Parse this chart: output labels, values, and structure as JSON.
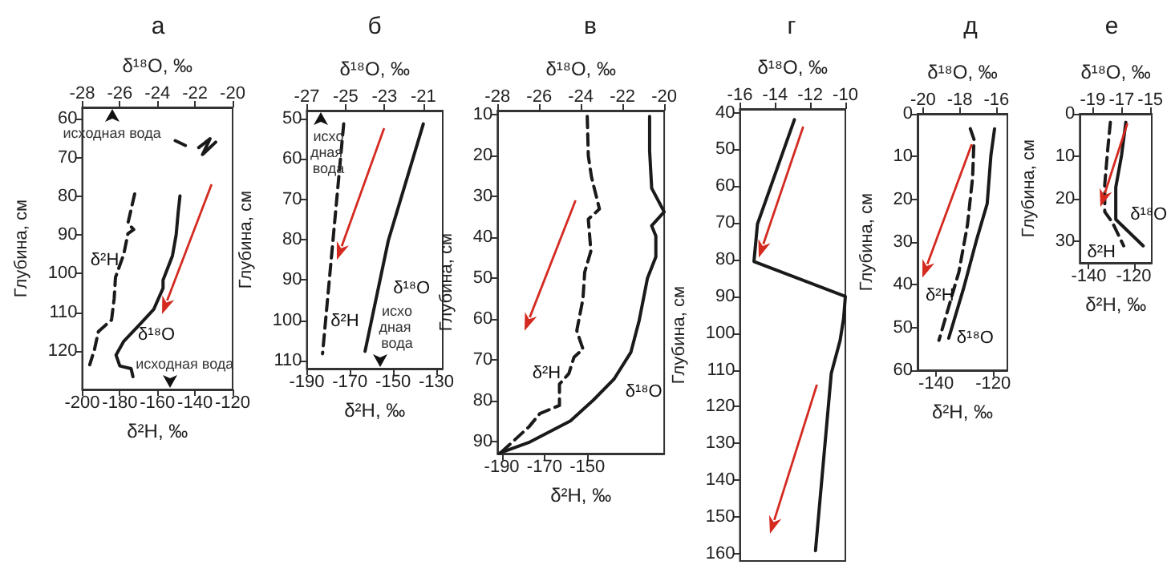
{
  "chart_data": [
    {
      "type": "line",
      "title": "а",
      "xlabel": "δ²H, ‰",
      "x2label": "δ¹⁸O, ‰",
      "ylabel": "Глубина, см",
      "xlim": [
        -200,
        -120
      ],
      "xticks": [
        -200,
        -180,
        -160,
        -140,
        -120
      ],
      "x2lim": [
        -28,
        -20
      ],
      "x2ticks": [
        -28,
        -26,
        -24,
        -22,
        -20
      ],
      "ylim": [
        130,
        57
      ],
      "yticks": [
        60,
        70,
        80,
        90,
        100,
        110,
        120
      ],
      "marker": "none",
      "series": [
        {
          "name": "δ²H",
          "color": "#1a1a1a",
          "line_style": "dashed",
          "x": [
            -150.5,
            -142.7,
            null,
            -172.1,
            -175.7,
            -172.6,
            -175.7,
            -177.9,
            -182.3,
            -183,
            -184.4,
            -191.4,
            -193.5,
            -196
          ],
          "values": [
            65.6,
            67.4,
            null,
            79.4,
            87,
            88.6,
            89.7,
            95,
            101,
            106.5,
            112,
            115,
            119.7,
            123.6
          ]
        },
        {
          "name": "δ¹⁸O",
          "color": "#1a1a1a",
          "line_style": "solid",
          "axis": "x2",
          "x": [
            -21.8,
            -21.2,
            -21.6,
            -20.9,
            null,
            -22.8,
            -22.9,
            -23.0,
            -23.2,
            -23.7,
            -23.7,
            -24.2,
            -25.0,
            -25.8,
            -26.2,
            -26.0,
            -25.4,
            -25.3
          ],
          "values": [
            67.4,
            65.1,
            69.2,
            66,
            null,
            79.9,
            84.4,
            89.9,
            95.4,
            101.7,
            103.8,
            109.3,
            113.5,
            117.6,
            121.1,
            123.9,
            124.6,
            126.7
          ]
        }
      ],
      "annotations": [
        "исходная вода",
        "исходная вода"
      ]
    },
    {
      "type": "line",
      "title": "б",
      "xlabel": "δ²H, ‰",
      "x2label": "δ¹⁸O, ‰",
      "ylabel": "Глубина, см",
      "xlim": [
        -190,
        -127
      ],
      "xticks": [
        -190,
        -170,
        -150,
        -130
      ],
      "x2lim": [
        -27,
        -20
      ],
      "x2ticks": [
        -27,
        -25,
        -23,
        -21
      ],
      "ylim": [
        112,
        48
      ],
      "yticks": [
        50,
        60,
        70,
        80,
        90,
        100,
        110
      ],
      "marker": "none",
      "series": [
        {
          "name": "δ²H",
          "color": "#1a1a1a",
          "line_style": "dashed",
          "x": [
            -172.9,
            -182.7
          ],
          "values": [
            51.3,
            108.3
          ]
        },
        {
          "name": "δ¹⁸O",
          "color": "#1a1a1a",
          "line_style": "solid",
          "axis": "x2",
          "x": [
            -21.0,
            -22.8,
            -24.0
          ],
          "values": [
            51.3,
            80.2,
            107.7
          ]
        }
      ],
      "annotations": [
        "исходная вода",
        "исходная вода"
      ]
    },
    {
      "type": "line",
      "title": "в",
      "xlabel": "δ²H, ‰",
      "x2label": "δ¹⁸O, ‰",
      "ylabel": "Глубина, см",
      "xlim": [
        -192,
        -114
      ],
      "xticks": [
        -190,
        -170,
        -150
      ],
      "x2lim": [
        -28,
        -20
      ],
      "x2ticks": [
        -28,
        -26,
        -24,
        -22,
        -20
      ],
      "ylim": [
        93,
        9
      ],
      "yticks": [
        10,
        20,
        30,
        40,
        50,
        60,
        70,
        80,
        90
      ],
      "marker": "none",
      "series": [
        {
          "name": "δ²H",
          "color": "#1a1a1a",
          "line_style": "dashed",
          "x": [
            -150,
            -149.5,
            -148,
            -144.3,
            -149.5,
            -148.3,
            -151.2,
            -152,
            -154.9,
            -152,
            -156.2,
            -158.6,
            -163,
            -163,
            -172.2,
            -177.2,
            -190.7
          ],
          "values": [
            10.4,
            20.1,
            25.3,
            33.1,
            35.6,
            43.4,
            48.6,
            55.1,
            62.9,
            67.4,
            69.4,
            73.4,
            76,
            81.2,
            83.2,
            86.4,
            92.9
          ]
        },
        {
          "name": "δ¹⁸O",
          "color": "#1a1a1a",
          "line_style": "solid",
          "axis": "x2",
          "x": [
            -20.7,
            -20.7,
            -20.6,
            -20.0,
            -20.6,
            -20.4,
            -20.4,
            -20.8,
            -21.2,
            -21.6,
            -22.4,
            -23.4,
            -24.5,
            -26.5,
            -27.9
          ],
          "values": [
            10.4,
            18.8,
            28,
            33.8,
            37.2,
            39.7,
            44.8,
            50,
            60.4,
            68.2,
            74.7,
            79.9,
            85,
            90.3,
            92.9
          ]
        }
      ]
    },
    {
      "type": "line",
      "title": "г",
      "xlabel": "δ¹⁸O, ‰",
      "ylabel": "Глубина, см",
      "xlim": [
        -16,
        -10
      ],
      "xticks": [
        -16,
        -14,
        -12,
        -10
      ],
      "ylim": [
        162,
        39
      ],
      "yticks": [
        40,
        50,
        60,
        70,
        80,
        90,
        100,
        110,
        120,
        130,
        140,
        150,
        160
      ],
      "marker": "none",
      "series": [
        {
          "color": "#1a1a1a",
          "line_style": "solid",
          "x": [
            -12.9,
            -15.0,
            -15.2,
            -10.0,
            -10.1,
            -10.3,
            -10.8,
            -11.7
          ],
          "values": [
            41.9,
            70.3,
            80.5,
            90,
            96,
            102,
            110.9,
            159.2
          ]
        }
      ]
    },
    {
      "type": "line",
      "title": "д",
      "xlabel": "δ²H, ‰",
      "x2label": "δ¹⁸O, ‰",
      "ylabel": "Глубина, см",
      "xlim": [
        -146.5,
        -115
      ],
      "xticks": [
        -140,
        -120
      ],
      "x2lim": [
        -20.3,
        -15.4
      ],
      "x2ticks": [
        -20,
        -18,
        -16
      ],
      "ylim": [
        60,
        0
      ],
      "yticks": [
        0,
        10,
        20,
        30,
        40,
        50,
        60
      ],
      "marker": "none",
      "series": [
        {
          "name": "δ²H",
          "color": "#1a1a1a",
          "line_style": "dashed",
          "x": [
            -128,
            -126.7,
            -127.2,
            -129,
            -132,
            -139
          ],
          "values": [
            3.5,
            6,
            15,
            26,
            37,
            53
          ]
        },
        {
          "name": "δ¹⁸O",
          "color": "#1a1a1a",
          "line_style": "solid",
          "axis": "x2",
          "x": [
            -16.1,
            -16.3,
            -16.5,
            -17.1,
            -17.8,
            -18.6
          ],
          "values": [
            3.5,
            9.8,
            21,
            29.8,
            41,
            52.5
          ]
        }
      ]
    },
    {
      "type": "line",
      "title": "е",
      "xlabel": "δ²H, ‰",
      "x2label": "δ¹⁸O, ‰",
      "ylabel": "Глубина, см",
      "xlim": [
        -144,
        -112
      ],
      "xticks": [
        -140,
        -120
      ],
      "x2lim": [
        -19.9,
        -14.9
      ],
      "x2ticks": [
        -19,
        -17,
        -15
      ],
      "ylim": [
        35,
        0
      ],
      "yticks": [
        0,
        10,
        20,
        30
      ],
      "marker": "none",
      "series": [
        {
          "name": "δ²H",
          "color": "#1a1a1a",
          "line_style": "dashed",
          "x": [
            -130.4,
            -131.6,
            -132.9,
            -132.9,
            -129.5,
            -124.5
          ],
          "values": [
            2,
            8.5,
            16.6,
            23,
            25.5,
            31
          ]
        },
        {
          "name": "δ¹⁸O",
          "color": "#1a1a1a",
          "line_style": "solid",
          "axis": "x2",
          "x": [
            -16.7,
            -17.0,
            -17.4,
            -17.4,
            -15.5
          ],
          "values": [
            2,
            9.8,
            17.3,
            24.8,
            31
          ]
        }
      ]
    }
  ]
}
